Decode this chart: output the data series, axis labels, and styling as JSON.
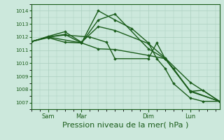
{
  "bg_color": "#cce8dc",
  "grid_color": "#aacfbf",
  "line_color": "#1a5c1a",
  "xlabel": "Pression niveau de la mer( hPa )",
  "xlabel_fontsize": 8,
  "ylim": [
    1006.5,
    1014.5
  ],
  "yticks": [
    1007,
    1008,
    1009,
    1010,
    1011,
    1012,
    1013,
    1014
  ],
  "xtick_labels": [
    "Sam",
    "Mar",
    "Dim",
    "Lun"
  ],
  "xtick_positions": [
    8,
    24,
    56,
    76
  ],
  "xlim": [
    0,
    90
  ],
  "lines": [
    {
      "x": [
        0,
        8,
        16,
        24,
        32,
        40,
        56,
        64,
        76,
        90
      ],
      "y": [
        1011.65,
        1012.0,
        1012.2,
        1011.55,
        1013.3,
        1013.75,
        1011.1,
        1010.35,
        1007.9,
        1007.1
      ],
      "lw": 1.0
    },
    {
      "x": [
        0,
        8,
        24,
        32,
        40,
        48,
        56,
        60,
        64,
        68,
        76,
        82,
        90
      ],
      "y": [
        1011.65,
        1012.0,
        1011.55,
        1014.0,
        1013.3,
        1012.65,
        1011.55,
        1010.35,
        1009.6,
        1008.45,
        1007.35,
        1007.1,
        1007.1
      ],
      "lw": 1.0
    },
    {
      "x": [
        0,
        8,
        16,
        24,
        32,
        40,
        56,
        64,
        76,
        90
      ],
      "y": [
        1011.65,
        1012.05,
        1012.4,
        1011.6,
        1012.8,
        1012.5,
        1011.5,
        1010.4,
        1008.55,
        1007.1
      ],
      "lw": 1.0
    },
    {
      "x": [
        0,
        8,
        16,
        24,
        32,
        40,
        56,
        64,
        76,
        90
      ],
      "y": [
        1011.65,
        1011.95,
        1011.6,
        1011.55,
        1011.1,
        1011.05,
        1010.6,
        1010.35,
        1007.85,
        1007.1
      ],
      "lw": 1.0
    },
    {
      "x": [
        0,
        8,
        16,
        28,
        36,
        40,
        56,
        60,
        64,
        68,
        76,
        82,
        90
      ],
      "y": [
        1011.65,
        1012.0,
        1012.15,
        1012.0,
        1011.6,
        1010.35,
        1010.35,
        1011.55,
        1010.35,
        1009.6,
        1007.85,
        1007.95,
        1007.1
      ],
      "lw": 1.0
    }
  ]
}
